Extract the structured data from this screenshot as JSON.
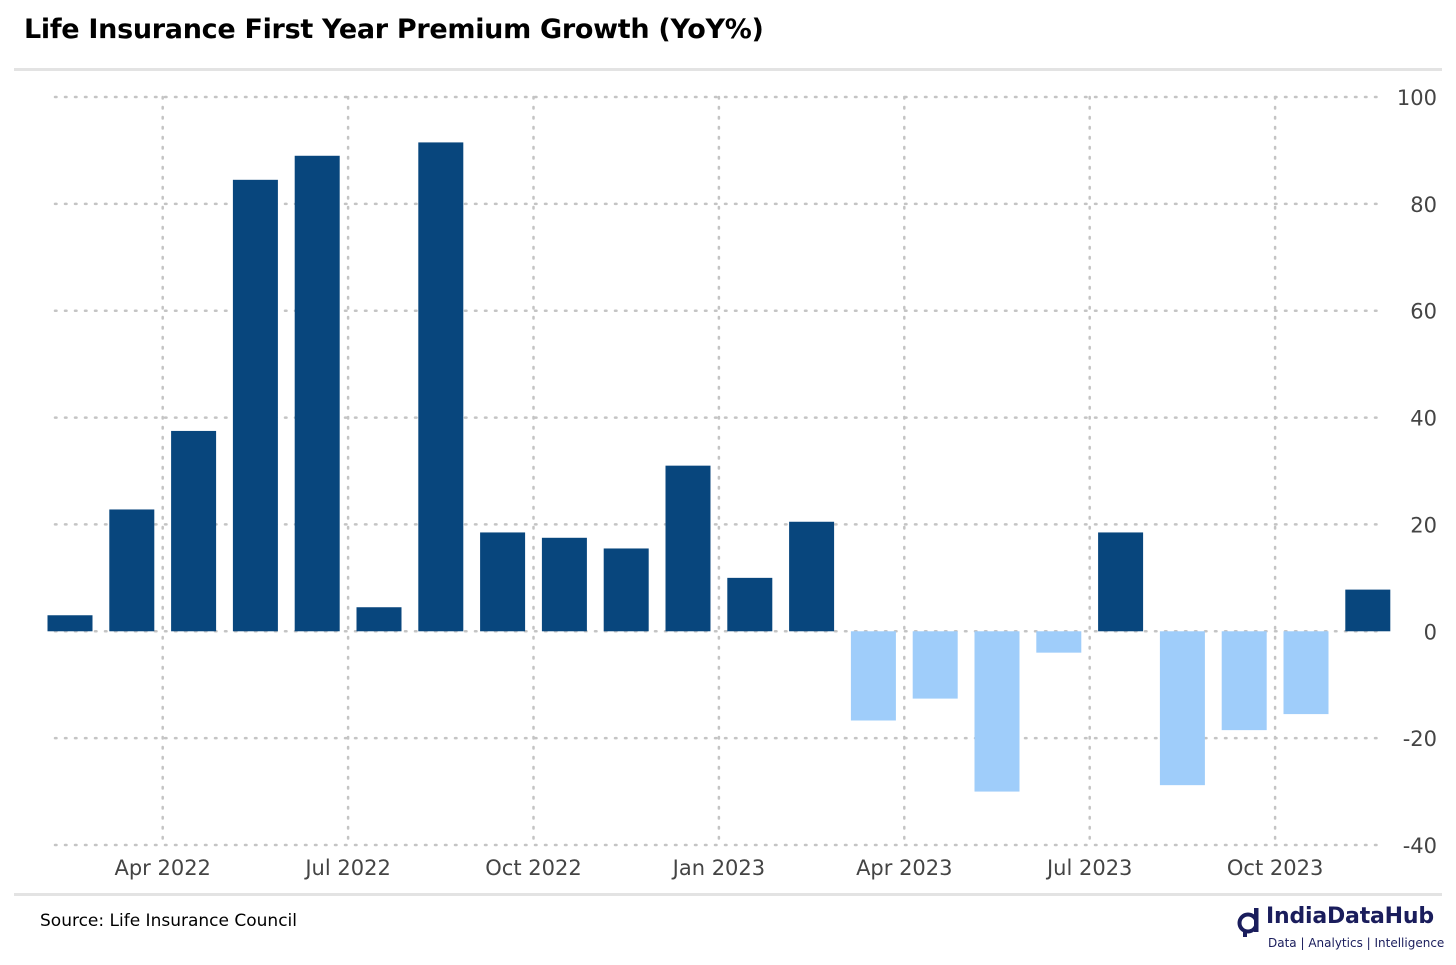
{
  "page": {
    "title": "Life Insurance First Year Premium Growth (YoY%)",
    "source": "Source: Life Insurance Council",
    "brand": {
      "name": "IndiaDataHub",
      "tagline": "Data | Analytics | Intelligence"
    }
  },
  "chart_data": {
    "type": "bar",
    "title": "Life Insurance First Year Premium Growth (YoY%)",
    "xlabel": "",
    "ylabel": "",
    "categories": [
      "Feb 2022",
      "Mar 2022",
      "Apr 2022",
      "May 2022",
      "Jun 2022",
      "Jul 2022",
      "Aug 2022",
      "Sep 2022",
      "Oct 2022",
      "Nov 2022",
      "Dec 2022",
      "Jan 2023",
      "Feb 2023",
      "Mar 2023",
      "Apr 2023",
      "May 2023",
      "Jun 2023",
      "Jul 2023",
      "Aug 2023",
      "Sep 2023",
      "Oct 2023",
      "Nov 2023"
    ],
    "values": [
      3,
      22.8,
      37.5,
      84.5,
      89,
      4.5,
      91.5,
      18.5,
      17.5,
      15.5,
      31,
      10,
      20.5,
      -16.7,
      -12.6,
      -30,
      -4,
      18.5,
      -28.8,
      -18.5,
      -15.5,
      7.8
    ],
    "xticks": [
      "Apr 2022",
      "Jul 2022",
      "Oct 2022",
      "Jan 2023",
      "Apr 2023",
      "Jul 2023",
      "Oct 2023"
    ],
    "yticks": [
      100,
      80,
      60,
      40,
      20,
      0,
      -20,
      -40
    ],
    "ylim": [
      -40,
      100
    ],
    "y_axis_position": "right",
    "grid": true,
    "colors": {
      "positive": "#08467d",
      "negative": "#9fcdfa",
      "grid": "#c4c4c4",
      "tick_text": "#444444"
    }
  }
}
